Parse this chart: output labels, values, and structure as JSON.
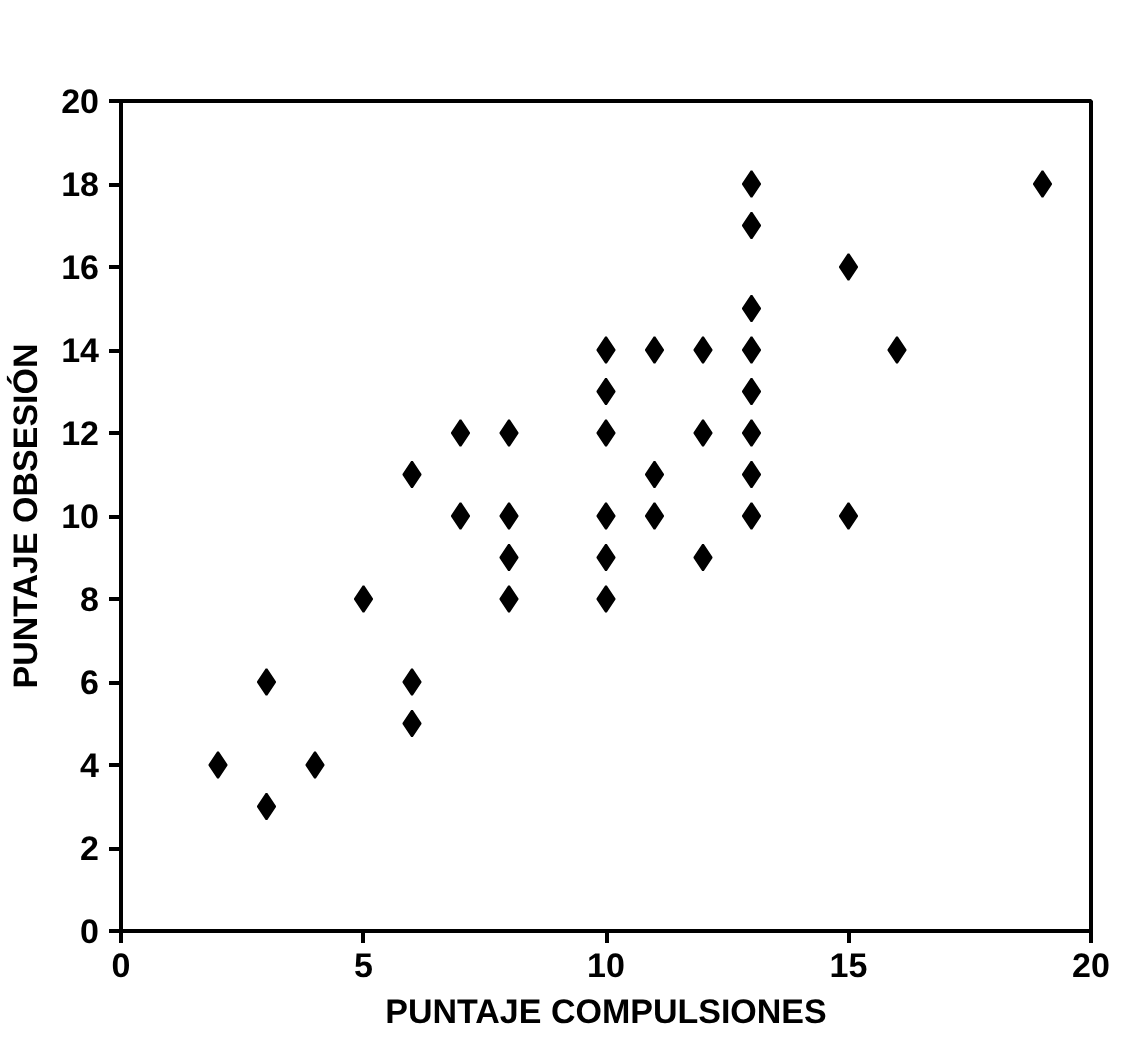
{
  "chart_data": {
    "type": "scatter",
    "xlabel": "PUNTAJE COMPULSIONES",
    "ylabel": "PUNTAJE OBSESIÓN",
    "x": [
      2,
      3,
      3,
      4,
      5,
      6,
      6,
      6,
      7,
      7,
      8,
      8,
      8,
      8,
      10,
      10,
      10,
      10,
      10,
      10,
      11,
      11,
      11,
      12,
      12,
      12,
      13,
      13,
      13,
      13,
      13,
      13,
      13,
      13,
      15,
      15,
      16,
      19
    ],
    "values": [
      4,
      6,
      3,
      4,
      8,
      11,
      6,
      5,
      12,
      10,
      12,
      10,
      9,
      8,
      14,
      13,
      12,
      10,
      9,
      8,
      14,
      11,
      10,
      14,
      12,
      9,
      18,
      17,
      15,
      14,
      13,
      12,
      11,
      10,
      16,
      10,
      14,
      18
    ],
    "color": "#000000",
    "marker": "diamond",
    "grid": false,
    "xlim": [
      0,
      20
    ],
    "ylim": [
      0,
      20
    ],
    "xticks": [
      0,
      5,
      10,
      15,
      20
    ],
    "yticks": [
      0,
      2,
      4,
      6,
      8,
      10,
      12,
      14,
      16,
      18,
      20
    ]
  }
}
